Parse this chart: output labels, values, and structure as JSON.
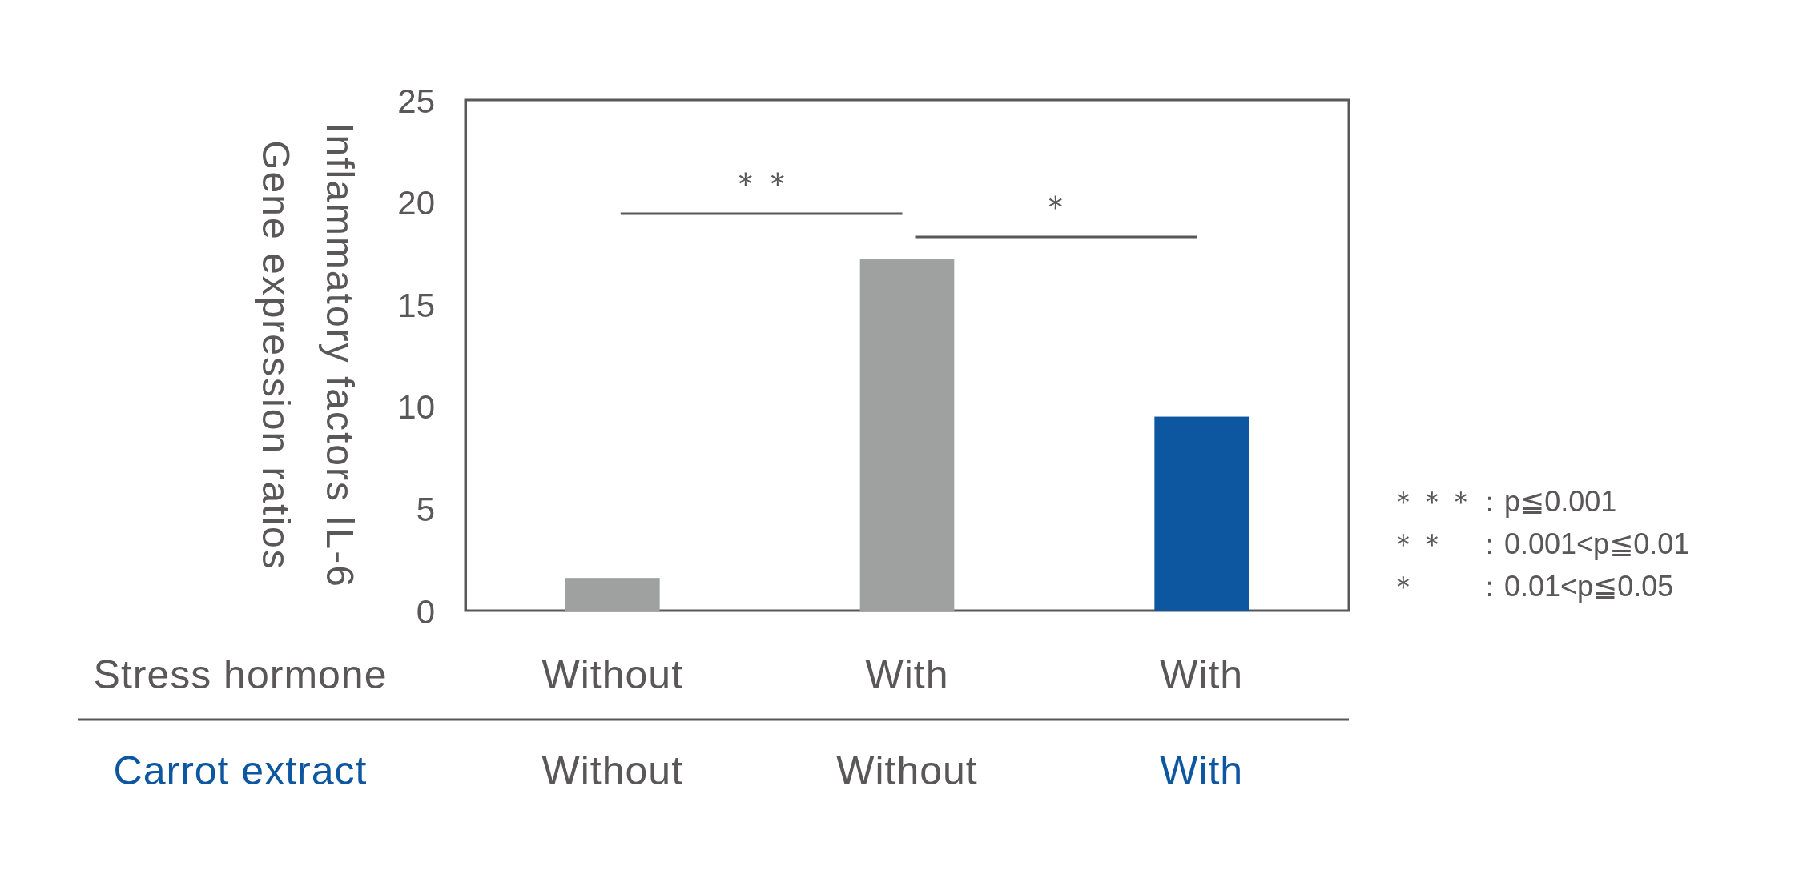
{
  "chart_data": {
    "type": "bar",
    "categories": [
      "Without\nWithout",
      "With\nWithout",
      "With\nWith"
    ],
    "values": [
      1.6,
      17.2,
      9.5
    ],
    "colors": [
      "#9fa0a0",
      "#9fa0a0",
      "#0d56a0"
    ],
    "ylim": [
      0,
      25
    ],
    "yticks": [
      0,
      5,
      10,
      15,
      20,
      25
    ],
    "ylabel": "Inflammatory factors ⅠL-6\nGene expression ratios",
    "xlabel": "Stress hormone\nCarrot extract",
    "annotations": [
      "＊＊",
      "＊",
      "＊＊＊：p≦0.001",
      "＊＊　：0.001<p≦0.01",
      "＊　　：0.01<p≦0.05"
    ]
  }
}
